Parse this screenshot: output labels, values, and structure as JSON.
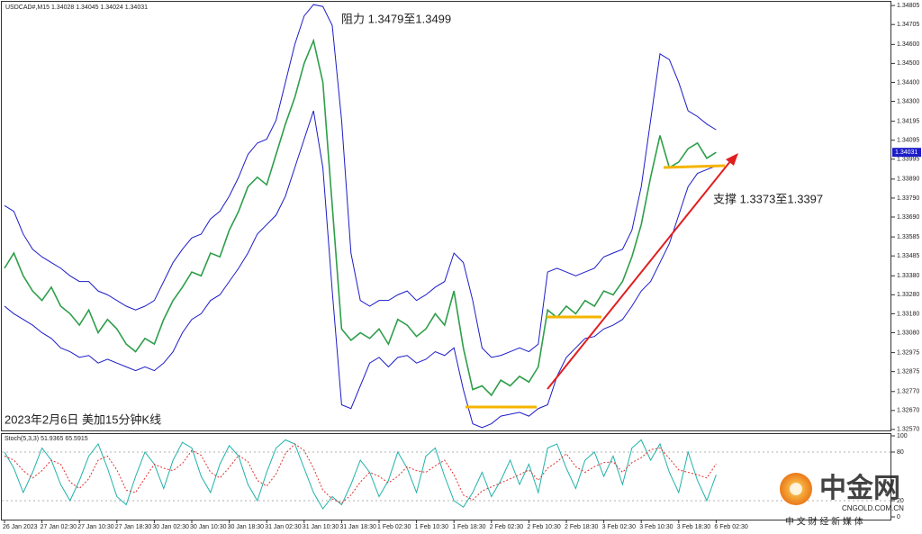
{
  "chart_data": [
    {
      "type": "line",
      "title": "USDCAD#,M15 1.34028 1.34045 1.34024 1.34031",
      "annotations": [
        "阻力 1.3479至1.3499",
        "支撑 1.3373至1.3397",
        "2023年2月6日 美加15分钟K线"
      ],
      "ylim": [
        1.3256,
        1.3482
      ],
      "yticks": [
        {
          "value": 1.34805,
          "label": "1.34805"
        },
        {
          "value": 1.34705,
          "label": "1.34705"
        },
        {
          "value": 1.346,
          "label": "1.34600"
        },
        {
          "value": 1.345,
          "label": "1.34500"
        },
        {
          "value": 1.344,
          "label": "1.34400"
        },
        {
          "value": 1.343,
          "label": "1.34300"
        },
        {
          "value": 1.34195,
          "label": "1.34195"
        },
        {
          "value": 1.34095,
          "label": "1.34095"
        },
        {
          "value": 1.33995,
          "label": "1.33995"
        },
        {
          "value": 1.3389,
          "label": "1.33890"
        },
        {
          "value": 1.3379,
          "label": "1.33790"
        },
        {
          "value": 1.3369,
          "label": "1.33690"
        },
        {
          "value": 1.33585,
          "label": "1.33585"
        },
        {
          "value": 1.33485,
          "label": "1.33485"
        },
        {
          "value": 1.3338,
          "label": "1.33380"
        },
        {
          "value": 1.3328,
          "label": "1.33280"
        },
        {
          "value": 1.3318,
          "label": "1.33180"
        },
        {
          "value": 1.3308,
          "label": "1.33080"
        },
        {
          "value": 1.32975,
          "label": "1.32975"
        },
        {
          "value": 1.32875,
          "label": "1.32875"
        },
        {
          "value": 1.3277,
          "label": "1.32770"
        },
        {
          "value": 1.3267,
          "label": "1.32670"
        },
        {
          "value": 1.3257,
          "label": "1.32570"
        }
      ],
      "series": [
        {
          "color": "#2e9e4a",
          "values": [
            1.3342,
            1.335,
            1.3338,
            1.333,
            1.3325,
            1.3332,
            1.3322,
            1.3318,
            1.3312,
            1.332,
            1.3308,
            1.3315,
            1.331,
            1.3302,
            1.3298,
            1.3305,
            1.3302,
            1.3315,
            1.3325,
            1.3332,
            1.334,
            1.3338,
            1.335,
            1.3348,
            1.3362,
            1.3372,
            1.3385,
            1.339,
            1.3386,
            1.3402,
            1.3418,
            1.3432,
            1.345,
            1.3462,
            1.344,
            1.3375,
            1.331,
            1.3304,
            1.3308,
            1.3305,
            1.331,
            1.3302,
            1.3315,
            1.3312,
            1.3306,
            1.331,
            1.3318,
            1.3312,
            1.333,
            1.33,
            1.3278,
            1.328,
            1.3275,
            1.3283,
            1.328,
            1.3285,
            1.3282,
            1.329,
            1.332,
            1.3316,
            1.3322,
            1.3318,
            1.3325,
            1.3322,
            1.333,
            1.3328,
            1.3335,
            1.3348,
            1.3365,
            1.339,
            1.3412,
            1.3395,
            1.3398,
            1.3405,
            1.3408,
            1.34,
            1.34031
          ]
        },
        {
          "color": "#1c1cc8",
          "values": [
            1.3375,
            1.3372,
            1.336,
            1.3352,
            1.3348,
            1.3345,
            1.3342,
            1.3338,
            1.3335,
            1.3335,
            1.333,
            1.3328,
            1.3325,
            1.3322,
            1.332,
            1.3322,
            1.3325,
            1.3335,
            1.3345,
            1.3352,
            1.3358,
            1.336,
            1.3368,
            1.3372,
            1.338,
            1.339,
            1.3402,
            1.3408,
            1.341,
            1.342,
            1.344,
            1.346,
            1.3475,
            1.3481,
            1.348,
            1.347,
            1.342,
            1.335,
            1.3325,
            1.3322,
            1.3325,
            1.3325,
            1.3328,
            1.333,
            1.3325,
            1.3328,
            1.3332,
            1.3335,
            1.335,
            1.3345,
            1.3325,
            1.33,
            1.3295,
            1.3296,
            1.3298,
            1.33,
            1.3298,
            1.3302,
            1.334,
            1.3342,
            1.334,
            1.3338,
            1.334,
            1.3342,
            1.3348,
            1.335,
            1.3352,
            1.3362,
            1.3385,
            1.342,
            1.3455,
            1.3452,
            1.344,
            1.3425,
            1.3422,
            1.3418,
            1.3415
          ]
        },
        {
          "color": "#1c1cc8",
          "values": [
            1.3322,
            1.3318,
            1.3315,
            1.3312,
            1.3308,
            1.3305,
            1.33,
            1.3298,
            1.3295,
            1.3296,
            1.3292,
            1.3294,
            1.3292,
            1.329,
            1.3288,
            1.329,
            1.3288,
            1.3292,
            1.3298,
            1.3308,
            1.3315,
            1.3318,
            1.3325,
            1.3328,
            1.3335,
            1.3342,
            1.335,
            1.336,
            1.3365,
            1.337,
            1.338,
            1.3395,
            1.341,
            1.3425,
            1.3395,
            1.333,
            1.327,
            1.3268,
            1.328,
            1.3292,
            1.3295,
            1.329,
            1.3295,
            1.3296,
            1.3292,
            1.3294,
            1.3298,
            1.3296,
            1.33,
            1.3278,
            1.326,
            1.3258,
            1.326,
            1.3264,
            1.3265,
            1.3266,
            1.3264,
            1.3268,
            1.327,
            1.3285,
            1.3295,
            1.33,
            1.3305,
            1.3306,
            1.331,
            1.3312,
            1.3315,
            1.3322,
            1.333,
            1.3335,
            1.3345,
            1.3355,
            1.337,
            1.3385,
            1.3392,
            1.3394,
            1.3396
          ]
        }
      ]
    },
    {
      "type": "line",
      "title": "Stoch(5,3,3) 51.9365 65.5915",
      "ylim": [
        0,
        100
      ],
      "yticks": [
        100,
        80,
        20,
        0
      ],
      "categories": [
        "26 Jan 2023",
        null,
        null,
        null,
        "27 Jan 02:30",
        null,
        null,
        null,
        "27 Jan 10:30",
        null,
        null,
        null,
        "27 Jan 18:30",
        null,
        null,
        null,
        "30 Jan 02:30",
        null,
        null,
        null,
        "30 Jan 10:30",
        null,
        null,
        null,
        "30 Jan 18:30",
        null,
        null,
        null,
        "31 Jan 02:30",
        null,
        null,
        null,
        "31 Jan 10:30",
        null,
        null,
        null,
        "31 Jan 18:30",
        null,
        null,
        null,
        "1 Feb 02:30",
        null,
        null,
        null,
        "1 Feb 10:30",
        null,
        null,
        null,
        "1 Feb 18:30",
        null,
        null,
        null,
        "2 Feb 02:30",
        null,
        null,
        null,
        "2 Feb 10:30",
        null,
        null,
        null,
        "2 Feb 18:30",
        null,
        null,
        null,
        "3 Feb 02:30",
        null,
        null,
        null,
        "3 Feb 10:30",
        null,
        null,
        null,
        "3 Feb 18:30",
        null,
        null,
        null,
        "6 Feb 02:30"
      ],
      "series": [
        {
          "color": "#20b2aa",
          "values": [
            80,
            60,
            30,
            55,
            85,
            70,
            40,
            20,
            45,
            75,
            90,
            60,
            25,
            15,
            50,
            80,
            65,
            35,
            70,
            92,
            85,
            50,
            30,
            65,
            88,
            75,
            40,
            20,
            55,
            85,
            95,
            90,
            60,
            30,
            10,
            25,
            15,
            40,
            70,
            55,
            25,
            45,
            80,
            60,
            30,
            75,
            85,
            50,
            20,
            12,
            30,
            55,
            25,
            45,
            70,
            40,
            65,
            30,
            85,
            90,
            60,
            35,
            70,
            80,
            50,
            75,
            40,
            85,
            95,
            70,
            90,
            55,
            30,
            80,
            45,
            20,
            51.9365
          ]
        },
        {
          "color": "#e03030",
          "values": [
            75,
            70,
            57,
            48,
            57,
            70,
            65,
            43,
            35,
            47,
            70,
            75,
            58,
            33,
            30,
            48,
            65,
            60,
            57,
            66,
            82,
            76,
            55,
            48,
            61,
            76,
            68,
            45,
            38,
            53,
            78,
            90,
            82,
            60,
            33,
            22,
            17,
            27,
            43,
            55,
            50,
            42,
            50,
            62,
            57,
            55,
            63,
            70,
            52,
            27,
            21,
            32,
            37,
            42,
            47,
            52,
            58,
            45,
            60,
            68,
            78,
            62,
            55,
            62,
            67,
            68,
            55,
            67,
            73,
            83,
            85,
            72,
            58,
            55,
            52,
            48,
            65.5915
          ]
        }
      ]
    }
  ],
  "watermark": {
    "brand": "中金网",
    "site": "CNGOLD.COM.CN",
    "slogan": "中 文 财 经 新 媒 体"
  }
}
